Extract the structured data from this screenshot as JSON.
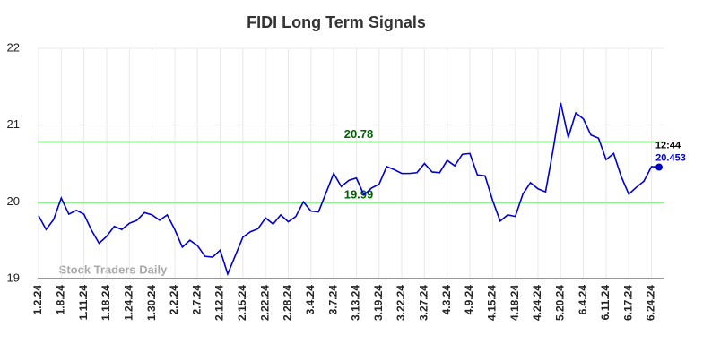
{
  "chart_data": {
    "type": "line",
    "title": "FIDI Long Term Signals",
    "color": "#0000cc",
    "categories": [
      "1.2.24",
      null,
      null,
      "1.8.24",
      null,
      null,
      "1.11.24",
      null,
      null,
      "1.18.24",
      null,
      null,
      "1.24.24",
      null,
      null,
      "1.30.24",
      null,
      null,
      "2.2.24",
      null,
      null,
      "2.7.24",
      null,
      null,
      "2.12.24",
      null,
      null,
      "2.15.24",
      null,
      null,
      "2.22.24",
      null,
      null,
      "2.28.24",
      null,
      null,
      "3.4.24",
      null,
      null,
      "3.7.24",
      null,
      null,
      "3.13.24",
      null,
      null,
      "3.19.24",
      null,
      null,
      "3.22.24",
      null,
      null,
      "3.27.24",
      null,
      null,
      "4.3.24",
      null,
      null,
      "4.9.24",
      null,
      null,
      "4.15.24",
      null,
      null,
      "4.18.24",
      null,
      null,
      "4.24.24",
      null,
      null,
      "5.20.24",
      null,
      null,
      "6.4.24",
      null,
      null,
      "6.11.24",
      null,
      null,
      "6.17.24",
      null,
      null,
      "6.24.24",
      null
    ],
    "values": [
      19.82,
      19.64,
      19.77,
      20.05,
      19.84,
      19.89,
      19.84,
      19.63,
      19.46,
      19.55,
      19.68,
      19.64,
      19.72,
      19.76,
      19.86,
      19.83,
      19.76,
      19.83,
      19.64,
      19.41,
      19.5,
      19.43,
      19.29,
      19.28,
      19.37,
      19.06,
      19.3,
      19.54,
      19.61,
      19.65,
      19.79,
      19.71,
      19.83,
      19.74,
      19.81,
      20.0,
      19.88,
      19.87,
      20.12,
      20.37,
      20.2,
      20.28,
      20.31,
      20.09,
      20.18,
      20.23,
      20.46,
      20.42,
      20.37,
      20.37,
      20.38,
      20.5,
      20.39,
      20.38,
      20.54,
      20.47,
      20.62,
      20.63,
      20.35,
      20.34,
      20.02,
      19.75,
      19.83,
      19.81,
      20.1,
      20.25,
      20.17,
      20.13,
      20.68,
      21.29,
      20.84,
      21.16,
      21.08,
      20.87,
      20.83,
      20.55,
      20.63,
      20.33,
      20.1,
      20.19,
      20.27,
      20.46,
      20.453
    ],
    "ylim": [
      19,
      22
    ],
    "yticks": [
      19,
      20,
      21,
      22
    ],
    "grid": true,
    "reference_lines": [
      {
        "value": 20.78,
        "color": "#90ee90",
        "label_color": "#006400"
      },
      {
        "value": 19.99,
        "color": "#90ee90",
        "label_color": "#006400"
      }
    ],
    "last_time": "12:44",
    "watermark": "Stock Traders Daily"
  }
}
